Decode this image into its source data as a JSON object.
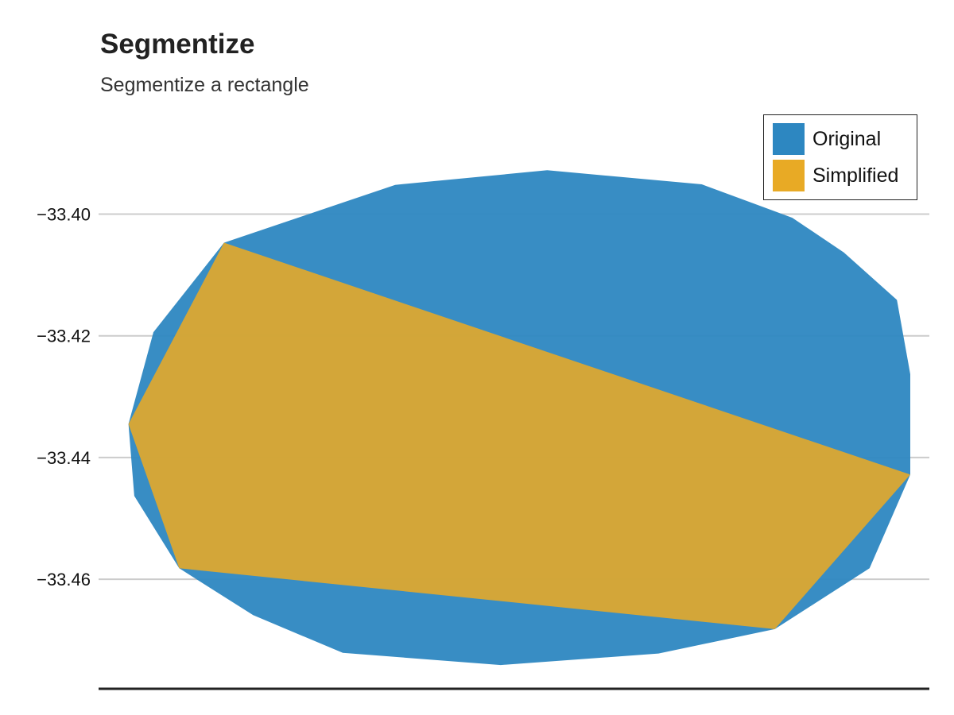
{
  "chart_data": {
    "type": "area",
    "title": "Segmentize",
    "subtitle": "Segmentize a rectangle",
    "xlabel": "",
    "ylabel": "",
    "ylim": [
      -33.478,
      -33.3844
    ],
    "xlim": [
      0,
      100
    ],
    "yticks": [
      -33.4,
      -33.42,
      -33.44,
      -33.46
    ],
    "ytick_labels": [
      "−33.40",
      "−33.42",
      "−33.44",
      "−33.46"
    ],
    "grid": "horizontal",
    "legend_position": "top-right",
    "series": [
      {
        "name": "Original",
        "color": "#2D87C1",
        "points": [
          [
            54.0,
            -33.3928
          ],
          [
            72.6,
            -33.3951
          ],
          [
            83.5,
            -33.4006
          ],
          [
            89.7,
            -33.4063
          ],
          [
            96.1,
            -33.4141
          ],
          [
            97.7,
            -33.4263
          ],
          [
            97.7,
            -33.4428
          ],
          [
            92.8,
            -33.4582
          ],
          [
            81.4,
            -33.4682
          ],
          [
            67.4,
            -33.4722
          ],
          [
            48.4,
            -33.4741
          ],
          [
            29.4,
            -33.4721
          ],
          [
            18.6,
            -33.4659
          ],
          [
            9.7,
            -33.4582
          ],
          [
            4.3,
            -33.4463
          ],
          [
            3.6,
            -33.4345
          ],
          [
            6.6,
            -33.4194
          ],
          [
            15.1,
            -33.4047
          ],
          [
            35.7,
            -33.3952
          ]
        ]
      },
      {
        "name": "Simplified",
        "color": "#E8AA25",
        "points": [
          [
            15.1,
            -33.4047
          ],
          [
            97.7,
            -33.4428
          ],
          [
            81.4,
            -33.4682
          ],
          [
            9.7,
            -33.4582
          ],
          [
            3.6,
            -33.4345
          ]
        ]
      }
    ]
  }
}
